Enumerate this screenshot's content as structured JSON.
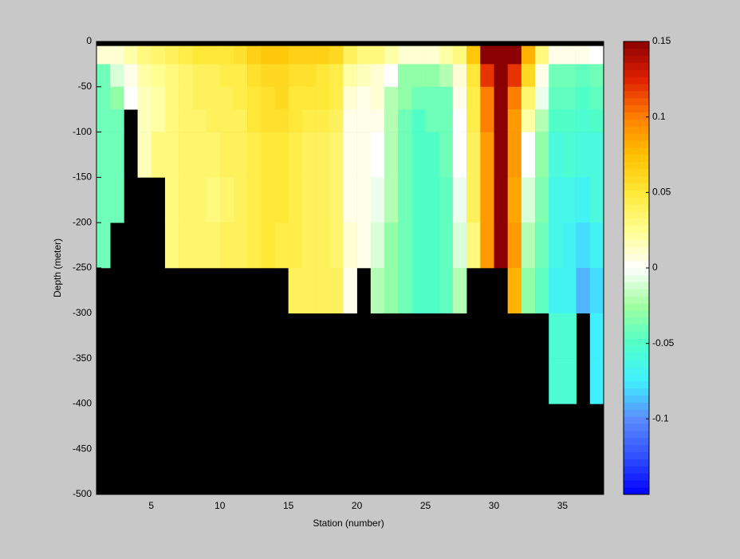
{
  "chart_data": {
    "type": "heatmap",
    "xlabel": "Station (number)",
    "ylabel": "Depth (meter)",
    "xlim": [
      1,
      38
    ],
    "xticks": [
      5,
      10,
      15,
      20,
      25,
      30,
      35
    ],
    "ylim": [
      -500,
      0
    ],
    "yticks": [
      0,
      -50,
      -100,
      -150,
      -200,
      -250,
      -300,
      -350,
      -400,
      -450,
      -500
    ],
    "x_edges": [
      1,
      2,
      3,
      4,
      5,
      6,
      7,
      8,
      9,
      10,
      11,
      12,
      13,
      14,
      15,
      16,
      17,
      18,
      19,
      20,
      21,
      22,
      23,
      24,
      25,
      26,
      27,
      28,
      29,
      30,
      31,
      32,
      33,
      34,
      35,
      36,
      37,
      38
    ],
    "y_edges": [
      0,
      -5,
      -25,
      -50,
      -75,
      -100,
      -150,
      -200,
      -250,
      -300,
      -350,
      -400,
      -450,
      -500
    ],
    "missing_color": "#000000",
    "clim": [
      -0.15,
      0.15
    ],
    "cticks": [
      0.15,
      0.1,
      0.05,
      0,
      -0.05,
      -0.1
    ],
    "colormap": [
      "#0000ff",
      "#3050ff",
      "#5a8cff",
      "#40f0ff",
      "#50ffc8",
      "#a0ffa0",
      "#ffffff",
      "#ffff90",
      "#ffe838",
      "#ffc000",
      "#ff8000",
      "#e02000",
      "#8b0000"
    ],
    "values": [
      [
        null,
        null,
        null,
        null,
        null,
        null,
        null,
        null,
        null,
        null,
        null,
        null,
        null,
        null,
        null,
        null,
        null,
        null,
        null,
        null,
        null,
        null,
        null,
        null,
        null,
        null,
        null,
        null,
        null,
        null,
        null,
        null,
        null,
        null,
        null,
        null,
        null
      ],
      [
        0.01,
        0.01,
        0.02,
        0.03,
        0.035,
        0.04,
        0.045,
        0.05,
        0.05,
        0.05,
        0.055,
        0.065,
        0.07,
        0.07,
        0.065,
        0.065,
        0.065,
        0.06,
        0.04,
        0.03,
        0.03,
        0.02,
        0.01,
        0.01,
        0.01,
        0.02,
        0.03,
        0.07,
        0.15,
        0.15,
        0.15,
        0.08,
        0.03,
        0.005,
        0.005,
        0.005,
        0
      ],
      [
        -0.04,
        -0.01,
        0.005,
        0.02,
        0.025,
        0.03,
        0.035,
        0.04,
        0.04,
        0.045,
        0.045,
        0.055,
        0.06,
        0.06,
        0.055,
        0.055,
        0.05,
        0.045,
        0.02,
        0.015,
        0.01,
        0,
        -0.03,
        -0.03,
        -0.03,
        -0.02,
        0.01,
        0.05,
        0.12,
        0.15,
        0.12,
        0.06,
        0.005,
        -0.04,
        -0.04,
        -0.045,
        -0.04
      ],
      [
        -0.04,
        -0.03,
        0,
        0.015,
        0.02,
        0.03,
        0.035,
        0.04,
        0.04,
        0.04,
        0.045,
        0.05,
        0.055,
        0.06,
        0.05,
        0.05,
        0.05,
        0.045,
        0.01,
        0.005,
        0.01,
        -0.02,
        -0.03,
        -0.04,
        -0.04,
        -0.04,
        0.005,
        0.045,
        0.1,
        0.15,
        0.1,
        0.035,
        -0.005,
        -0.045,
        -0.045,
        -0.05,
        -0.045
      ],
      [
        -0.04,
        -0.04,
        null,
        0.015,
        0.02,
        0.03,
        0.035,
        0.035,
        0.04,
        0.04,
        0.04,
        0.05,
        0.055,
        0.055,
        0.05,
        0.045,
        0.045,
        0.04,
        0.005,
        0.005,
        0.005,
        -0.02,
        -0.04,
        -0.05,
        -0.04,
        -0.04,
        0,
        0.045,
        0.1,
        0.15,
        0.09,
        0.02,
        -0.02,
        -0.05,
        -0.05,
        -0.055,
        -0.05
      ],
      [
        -0.04,
        -0.04,
        null,
        0.015,
        0.03,
        0.03,
        0.035,
        0.035,
        0.035,
        0.04,
        0.04,
        0.045,
        0.05,
        0.05,
        0.045,
        0.04,
        0.04,
        0.035,
        0.005,
        0.005,
        0,
        -0.02,
        -0.04,
        -0.05,
        -0.05,
        -0.04,
        0,
        0.04,
        0.09,
        0.15,
        0.09,
        0,
        -0.03,
        -0.06,
        -0.055,
        -0.06,
        -0.06
      ],
      [
        -0.04,
        -0.04,
        null,
        null,
        null,
        0.03,
        0.035,
        0.035,
        0.03,
        0.035,
        0.04,
        0.045,
        0.05,
        0.05,
        0.045,
        0.04,
        0.04,
        0.035,
        0.005,
        0.005,
        -0.005,
        -0.02,
        -0.04,
        -0.05,
        -0.05,
        -0.045,
        -0.005,
        0.04,
        0.09,
        0.15,
        0.085,
        -0.01,
        -0.035,
        -0.065,
        -0.065,
        -0.07,
        -0.06
      ],
      [
        -0.04,
        null,
        null,
        null,
        null,
        0.03,
        0.035,
        0.035,
        0.035,
        0.04,
        0.04,
        0.045,
        0.05,
        0.045,
        0.045,
        0.04,
        0.04,
        0.035,
        0.01,
        0.005,
        -0.01,
        -0.03,
        -0.04,
        -0.05,
        -0.05,
        -0.045,
        -0.01,
        0.03,
        0.09,
        0.15,
        0.09,
        -0.02,
        -0.04,
        -0.065,
        -0.07,
        -0.08,
        -0.07
      ],
      [
        null,
        null,
        null,
        null,
        null,
        null,
        null,
        null,
        null,
        null,
        null,
        null,
        null,
        null,
        0.04,
        0.04,
        0.04,
        0.04,
        0.005,
        null,
        -0.02,
        -0.03,
        -0.04,
        -0.05,
        -0.05,
        -0.045,
        -0.02,
        null,
        null,
        null,
        0.08,
        -0.03,
        -0.045,
        -0.07,
        -0.07,
        -0.09,
        -0.08
      ],
      [
        null,
        null,
        null,
        null,
        null,
        null,
        null,
        null,
        null,
        null,
        null,
        null,
        null,
        null,
        null,
        null,
        null,
        null,
        null,
        null,
        null,
        null,
        null,
        null,
        null,
        null,
        null,
        null,
        null,
        null,
        null,
        null,
        null,
        -0.055,
        -0.055,
        null,
        -0.075
      ],
      [
        null,
        null,
        null,
        null,
        null,
        null,
        null,
        null,
        null,
        null,
        null,
        null,
        null,
        null,
        null,
        null,
        null,
        null,
        null,
        null,
        null,
        null,
        null,
        null,
        null,
        null,
        null,
        null,
        null,
        null,
        null,
        null,
        null,
        -0.055,
        -0.055,
        null,
        -0.075
      ],
      [
        null,
        null,
        null,
        null,
        null,
        null,
        null,
        null,
        null,
        null,
        null,
        null,
        null,
        null,
        null,
        null,
        null,
        null,
        null,
        null,
        null,
        null,
        null,
        null,
        null,
        null,
        null,
        null,
        null,
        null,
        null,
        null,
        null,
        null,
        null,
        null,
        null
      ],
      [
        null,
        null,
        null,
        null,
        null,
        null,
        null,
        null,
        null,
        null,
        null,
        null,
        null,
        null,
        null,
        null,
        null,
        null,
        null,
        null,
        null,
        null,
        null,
        null,
        null,
        null,
        null,
        null,
        null,
        null,
        null,
        null,
        null,
        null,
        null,
        null,
        null
      ]
    ]
  }
}
